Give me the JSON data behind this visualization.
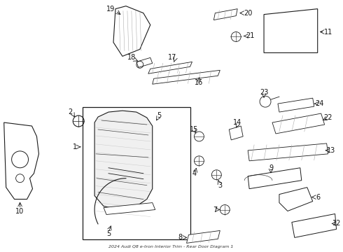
{
  "title": "2024 Audi Q8 e-tron Interior Trim - Rear Door Diagram 1",
  "bg_color": "#ffffff",
  "line_color": "#1a1a1a",
  "label_color": "#111111",
  "fig_width": 4.9,
  "fig_height": 3.6,
  "dpi": 100
}
